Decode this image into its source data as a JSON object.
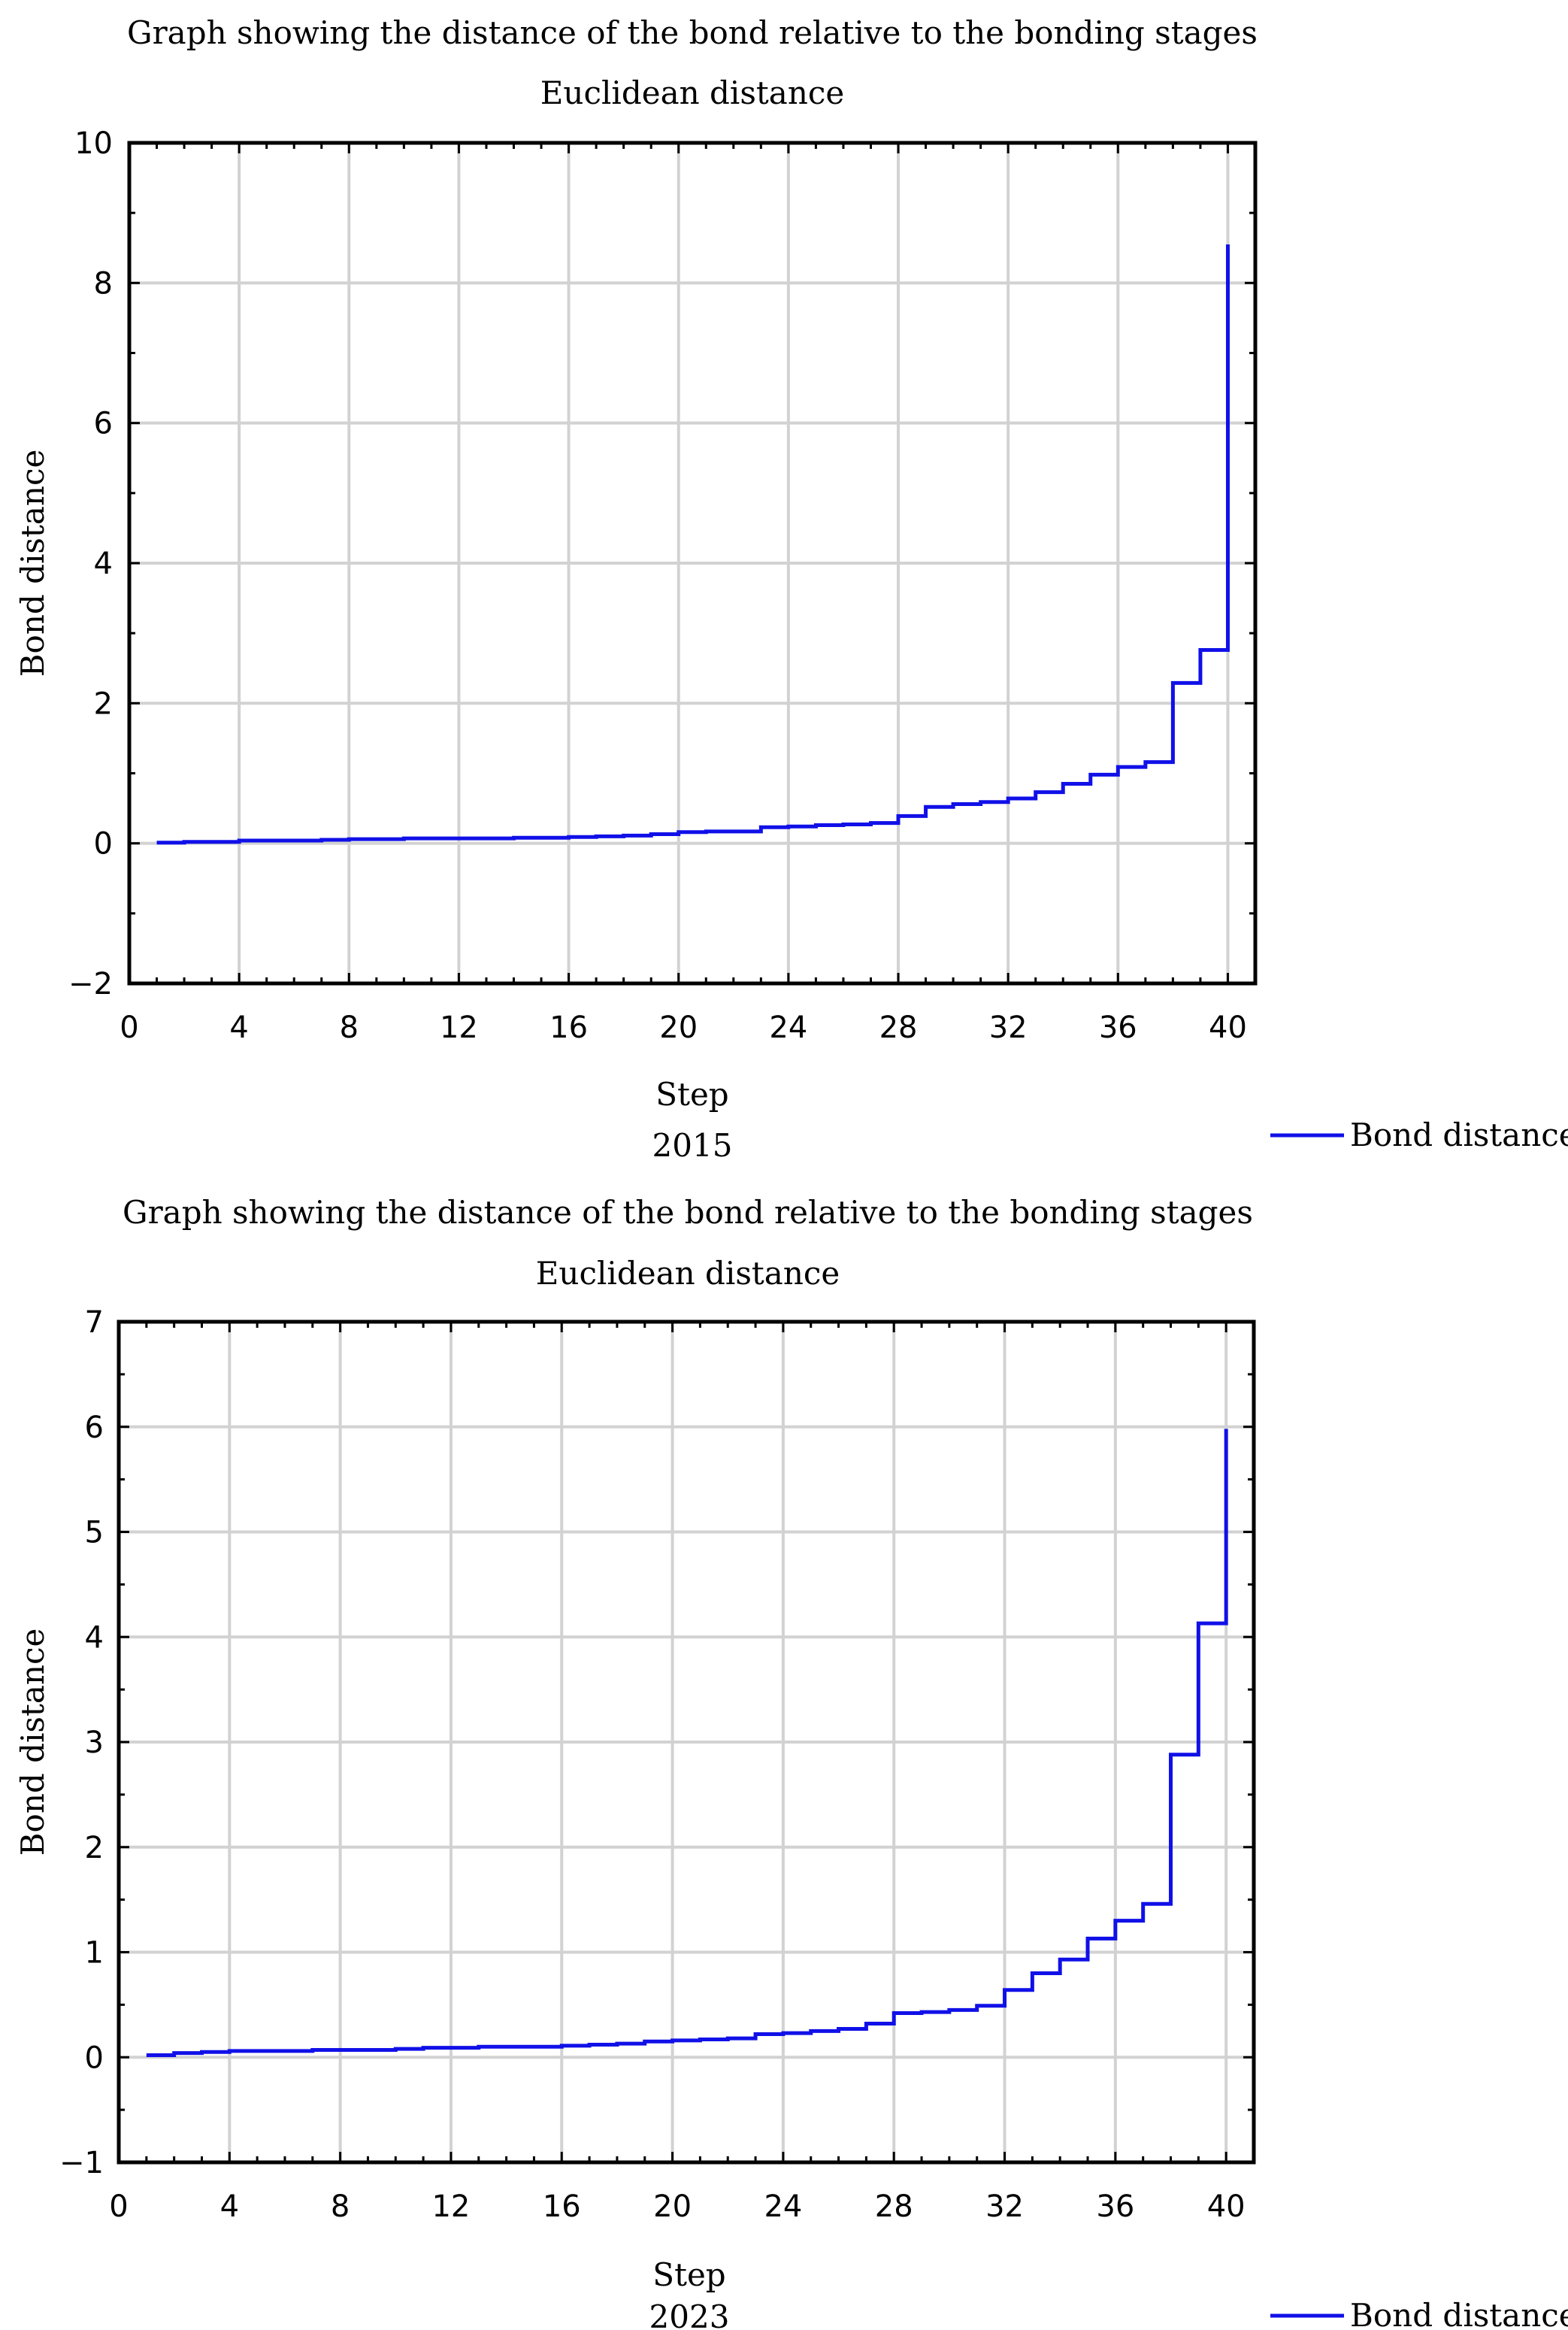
{
  "colors": {
    "series": "#1010e8",
    "grid": "#d2d2d2",
    "frame": "#000000"
  },
  "chart_data": [
    {
      "type": "line",
      "step": true,
      "title": "Graph showing the distance of the bond relative to the bonding stages",
      "subtitle": "Euclidean distance",
      "xlabel": "Step",
      "caption": "2015",
      "ylabel": "Bond distance",
      "xlim": [
        0,
        41
      ],
      "ylim": [
        -2,
        10
      ],
      "xticks": [
        "0",
        "4",
        "8",
        "12",
        "16",
        "20",
        "24",
        "28",
        "32",
        "36",
        "40"
      ],
      "yticks": [
        "−2",
        "0",
        "2",
        "4",
        "6",
        "8",
        "10"
      ],
      "grid": true,
      "legend": "bottom-right",
      "series": [
        {
          "name": "Bond distance",
          "x": [
            1,
            2,
            3,
            4,
            5,
            6,
            7,
            8,
            9,
            10,
            11,
            12,
            13,
            14,
            15,
            16,
            17,
            18,
            19,
            20,
            21,
            22,
            23,
            24,
            25,
            26,
            27,
            28,
            29,
            30,
            31,
            32,
            33,
            34,
            35,
            36,
            37,
            38,
            39,
            40
          ],
          "values": [
            0.01,
            0.02,
            0.02,
            0.04,
            0.04,
            0.04,
            0.05,
            0.06,
            0.06,
            0.07,
            0.07,
            0.07,
            0.07,
            0.08,
            0.08,
            0.09,
            0.1,
            0.11,
            0.13,
            0.16,
            0.17,
            0.17,
            0.23,
            0.24,
            0.26,
            0.27,
            0.29,
            0.39,
            0.52,
            0.56,
            0.59,
            0.64,
            0.73,
            0.85,
            0.98,
            1.09,
            1.16,
            2.29,
            2.76,
            8.55
          ]
        }
      ]
    },
    {
      "type": "line",
      "step": true,
      "title": "Graph showing the distance of the bond relative to the bonding stages",
      "subtitle": "Euclidean distance",
      "xlabel": "Step",
      "caption": "2023",
      "ylabel": "Bond distance",
      "xlim": [
        0,
        41
      ],
      "ylim": [
        -1,
        7
      ],
      "xticks": [
        "0",
        "4",
        "8",
        "12",
        "16",
        "20",
        "24",
        "28",
        "32",
        "36",
        "40"
      ],
      "yticks": [
        "−1",
        "0",
        "1",
        "2",
        "3",
        "4",
        "5",
        "6",
        "7"
      ],
      "grid": true,
      "legend": "bottom-right",
      "series": [
        {
          "name": "Bond distance",
          "x": [
            1,
            2,
            3,
            4,
            5,
            6,
            7,
            8,
            9,
            10,
            11,
            12,
            13,
            14,
            15,
            16,
            17,
            18,
            19,
            20,
            21,
            22,
            23,
            24,
            25,
            26,
            27,
            28,
            29,
            30,
            31,
            32,
            33,
            34,
            35,
            36,
            37,
            38,
            39,
            40
          ],
          "values": [
            0.02,
            0.04,
            0.05,
            0.06,
            0.06,
            0.06,
            0.07,
            0.07,
            0.07,
            0.08,
            0.09,
            0.09,
            0.1,
            0.1,
            0.1,
            0.11,
            0.12,
            0.13,
            0.15,
            0.16,
            0.17,
            0.18,
            0.22,
            0.23,
            0.25,
            0.27,
            0.32,
            0.42,
            0.43,
            0.45,
            0.49,
            0.64,
            0.8,
            0.93,
            1.13,
            1.3,
            1.46,
            2.88,
            4.13,
            5.98
          ]
        }
      ]
    }
  ]
}
